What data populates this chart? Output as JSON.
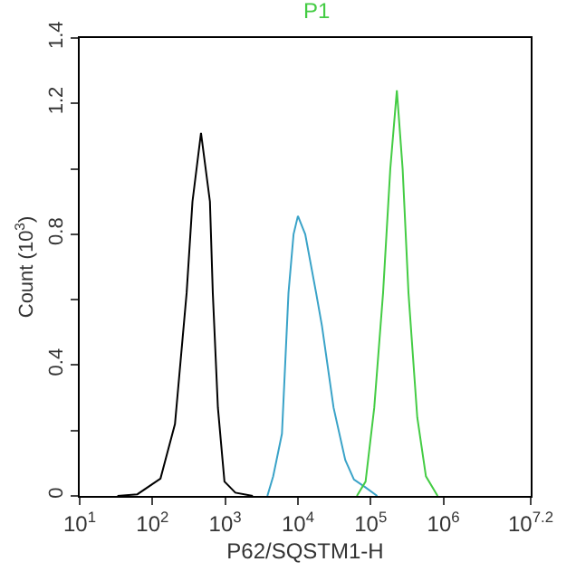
{
  "chart_data": {
    "type": "line",
    "title": "P1",
    "xlabel": "P62/SQSTM1-H",
    "ylabel": "Count (10$^{3}$)",
    "log": "x",
    "marker": "none",
    "line_style": "solid",
    "xlim": [
      10,
      15848932
    ],
    "ylim": [
      0,
      1.4
    ],
    "xticks": [
      {
        "value": 10,
        "label": "10$^{1}$"
      },
      {
        "value": 100,
        "label": "10$^{2}$"
      },
      {
        "value": 1000,
        "label": "10$^{3}$"
      },
      {
        "value": 10000,
        "label": "10$^{4}$"
      },
      {
        "value": 100000,
        "label": "10$^{5}$"
      },
      {
        "value": 1000000,
        "label": "10$^{6}$"
      },
      {
        "value": 15848932,
        "label": "10$^{7.2}$"
      }
    ],
    "yticks": [
      0,
      {
        "value": 0.2,
        "label": null
      },
      0.4,
      {
        "value": 0.6,
        "label": null
      },
      0.8,
      {
        "value": 1.0,
        "label": null
      },
      1.2,
      1.4
    ],
    "series": [
      {
        "color": "#000000",
        "x": [
          33,
          62,
          129,
          204,
          295,
          355,
          465,
          617,
          676,
          794,
          977,
          1380,
          2400
        ],
        "values": [
          0,
          0.005,
          0.053,
          0.22,
          0.62,
          0.9,
          1.11,
          0.9,
          0.62,
          0.27,
          0.044,
          0.01,
          0
        ]
      },
      {
        "color": "#3aa3c8",
        "x": [
          3800,
          4570,
          6030,
          7410,
          8710,
          10000,
          12600,
          17800,
          21400,
          30900,
          44700,
          58900,
          85100,
          123000
        ],
        "values": [
          0,
          0.06,
          0.19,
          0.62,
          0.8,
          0.856,
          0.8,
          0.62,
          0.52,
          0.27,
          0.11,
          0.05,
          0.026,
          0
        ]
      },
      {
        "color": "#44cc44",
        "x": [
          64600,
          85100,
          112000,
          148000,
          186000,
          229000,
          275000,
          331000,
          437000,
          575000,
          832000
        ],
        "values": [
          0,
          0.044,
          0.27,
          0.62,
          1.0,
          1.24,
          1.0,
          0.62,
          0.24,
          0.06,
          0
        ]
      }
    ]
  }
}
